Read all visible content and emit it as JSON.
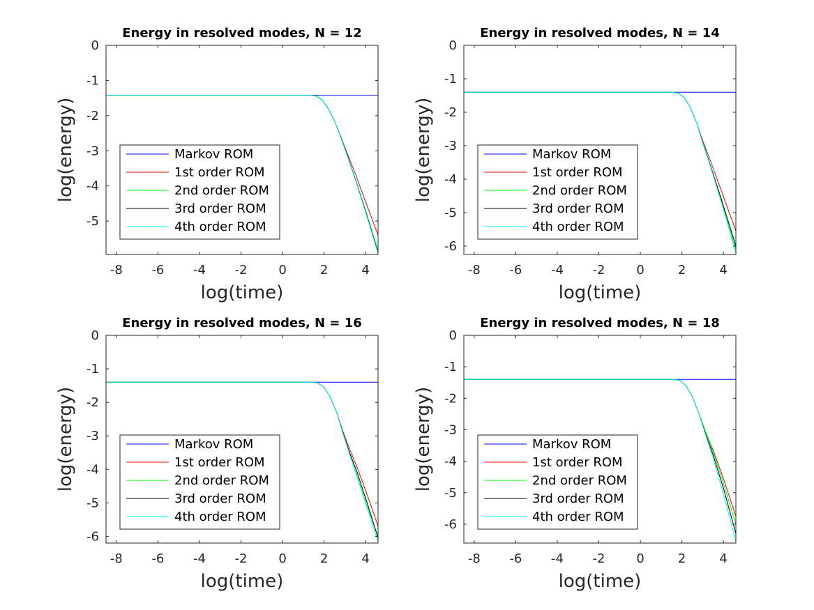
{
  "figure": {
    "colors": {
      "Markov ROM": "#0000ff",
      "1st order ROM": "#ff0000",
      "2nd order ROM": "#00ff00",
      "3rd order ROM": "#000000",
      "4th order ROM": "#00ffff"
    }
  },
  "chart_data": [
    {
      "type": "line",
      "title": "Energy in resolved modes, N = 12",
      "xlabel": "log(time)",
      "ylabel": "log(energy)",
      "xlim": [
        -8.5,
        4.6
      ],
      "ylim": [
        -5.95,
        0
      ],
      "xticks": [
        "-8",
        "-6",
        "-4",
        "-2",
        "0",
        "2",
        "4"
      ],
      "yticks": [
        "0",
        "-1",
        "-2",
        "-3",
        "-4",
        "-5"
      ],
      "legend_position": "lower-left",
      "series": [
        {
          "name": "Markov ROM",
          "x": [
            -8.5,
            1.5,
            4.6
          ],
          "y": [
            -1.42,
            -1.42,
            -1.42
          ]
        },
        {
          "name": "1st order ROM",
          "x": [
            -8.5,
            1.3,
            1.6,
            1.9,
            2.2,
            2.5,
            2.8,
            3.1,
            3.5,
            4.0,
            4.6
          ],
          "y": [
            -1.42,
            -1.42,
            -1.44,
            -1.55,
            -1.8,
            -2.15,
            -2.6,
            -3.05,
            -3.65,
            -4.45,
            -5.4
          ]
        },
        {
          "name": "2nd order ROM",
          "x": [
            -8.5,
            1.3,
            1.6,
            1.9,
            2.2,
            2.5,
            2.8,
            3.1,
            3.5,
            4.0,
            4.6
          ],
          "y": [
            -1.42,
            -1.42,
            -1.44,
            -1.55,
            -1.8,
            -2.15,
            -2.6,
            -3.1,
            -3.8,
            -4.7,
            -5.85
          ]
        },
        {
          "name": "3rd order ROM",
          "x": [
            -8.5,
            1.3,
            1.6,
            1.9,
            2.2,
            2.5,
            2.8,
            3.1,
            3.5,
            4.0,
            4.6
          ],
          "y": [
            -1.42,
            -1.42,
            -1.44,
            -1.55,
            -1.8,
            -2.15,
            -2.6,
            -3.1,
            -3.8,
            -4.72,
            -5.9
          ]
        },
        {
          "name": "4th order ROM",
          "x": [
            -8.5,
            1.3,
            1.6,
            1.9,
            2.2,
            2.5,
            2.8,
            3.1,
            3.5,
            4.0,
            4.6
          ],
          "y": [
            -1.42,
            -1.42,
            -1.44,
            -1.55,
            -1.8,
            -2.15,
            -2.62,
            -3.12,
            -3.82,
            -4.75,
            -5.93
          ]
        }
      ]
    },
    {
      "type": "line",
      "title": "Energy in resolved modes, N = 14",
      "xlabel": "log(time)",
      "ylabel": "log(energy)",
      "xlim": [
        -8.5,
        4.6
      ],
      "ylim": [
        -6.25,
        0
      ],
      "xticks": [
        "-8",
        "-6",
        "-4",
        "-2",
        "0",
        "2",
        "4"
      ],
      "yticks": [
        "0",
        "-1",
        "-2",
        "-3",
        "-4",
        "-5",
        "-6"
      ],
      "legend_position": "lower-left",
      "series": [
        {
          "name": "Markov ROM",
          "x": [
            -8.5,
            1.5,
            4.6
          ],
          "y": [
            -1.4,
            -1.4,
            -1.4
          ]
        },
        {
          "name": "1st order ROM",
          "x": [
            -8.5,
            1.5,
            1.8,
            2.1,
            2.4,
            2.7,
            3.0,
            3.4,
            3.9,
            4.6
          ],
          "y": [
            -1.4,
            -1.4,
            -1.42,
            -1.55,
            -1.85,
            -2.3,
            -2.85,
            -3.5,
            -4.35,
            -5.55
          ]
        },
        {
          "name": "2nd order ROM",
          "x": [
            -8.5,
            1.5,
            1.8,
            2.1,
            2.4,
            2.7,
            3.0,
            3.4,
            3.9,
            4.6
          ],
          "y": [
            -1.4,
            -1.4,
            -1.42,
            -1.55,
            -1.85,
            -2.3,
            -2.9,
            -3.65,
            -4.65,
            -6.1
          ]
        },
        {
          "name": "3rd order ROM",
          "x": [
            -8.5,
            1.5,
            1.8,
            2.1,
            2.4,
            2.7,
            3.0,
            3.4,
            3.9,
            4.6
          ],
          "y": [
            -1.4,
            -1.4,
            -1.42,
            -1.55,
            -1.85,
            -2.3,
            -2.9,
            -3.65,
            -4.6,
            -6.0
          ]
        },
        {
          "name": "4th order ROM",
          "x": [
            -8.5,
            1.5,
            1.8,
            2.1,
            2.4,
            2.7,
            3.0,
            3.4,
            3.9,
            4.6
          ],
          "y": [
            -1.4,
            -1.4,
            -1.42,
            -1.55,
            -1.85,
            -2.3,
            -2.92,
            -3.68,
            -4.7,
            -6.2
          ]
        }
      ]
    },
    {
      "type": "line",
      "title": "Energy in resolved modes, N = 16",
      "xlabel": "log(time)",
      "ylabel": "log(energy)",
      "xlim": [
        -8.5,
        4.6
      ],
      "ylim": [
        -6.2,
        0
      ],
      "xticks": [
        "-8",
        "-6",
        "-4",
        "-2",
        "0",
        "2",
        "4"
      ],
      "yticks": [
        "0",
        "-1",
        "-2",
        "-3",
        "-4",
        "-5",
        "-6"
      ],
      "legend_position": "lower-left",
      "series": [
        {
          "name": "Markov ROM",
          "x": [
            -8.5,
            1.5,
            4.6
          ],
          "y": [
            -1.4,
            -1.4,
            -1.4
          ]
        },
        {
          "name": "1st order ROM",
          "x": [
            -8.5,
            1.4,
            1.7,
            2.0,
            2.3,
            2.6,
            2.9,
            3.2,
            3.6,
            4.1,
            4.6
          ],
          "y": [
            -1.4,
            -1.4,
            -1.42,
            -1.55,
            -1.85,
            -2.3,
            -2.85,
            -3.35,
            -3.95,
            -4.8,
            -5.7
          ]
        },
        {
          "name": "2nd order ROM",
          "x": [
            -8.5,
            1.4,
            1.7,
            2.0,
            2.3,
            2.6,
            2.9,
            3.2,
            3.6,
            4.1,
            4.6
          ],
          "y": [
            -1.4,
            -1.4,
            -1.42,
            -1.55,
            -1.85,
            -2.3,
            -2.9,
            -3.5,
            -4.2,
            -5.15,
            -6.0
          ]
        },
        {
          "name": "3rd order ROM",
          "x": [
            -8.5,
            1.4,
            1.7,
            2.0,
            2.3,
            2.6,
            2.9,
            3.2,
            3.6,
            4.1,
            4.6
          ],
          "y": [
            -1.4,
            -1.4,
            -1.42,
            -1.55,
            -1.85,
            -2.3,
            -2.9,
            -3.45,
            -4.1,
            -5.05,
            -6.05
          ]
        },
        {
          "name": "4th order ROM",
          "x": [
            -8.5,
            1.4,
            1.7,
            2.0,
            2.3,
            2.6,
            2.9,
            3.2,
            3.6,
            4.1,
            4.6
          ],
          "y": [
            -1.4,
            -1.4,
            -1.42,
            -1.55,
            -1.85,
            -2.3,
            -2.92,
            -3.5,
            -4.25,
            -5.2,
            -6.15
          ]
        }
      ]
    },
    {
      "type": "line",
      "title": "Energy in resolved modes, N = 18",
      "xlabel": "log(time)",
      "ylabel": "log(energy)",
      "xlim": [
        -8.5,
        4.6
      ],
      "ylim": [
        -6.6,
        0
      ],
      "xticks": [
        "-8",
        "-6",
        "-4",
        "-2",
        "0",
        "2",
        "4"
      ],
      "yticks": [
        "0",
        "-1",
        "-2",
        "-3",
        "-4",
        "-5",
        "-6"
      ],
      "legend_position": "lower-left",
      "series": [
        {
          "name": "Markov ROM",
          "x": [
            -8.5,
            1.5,
            4.6
          ],
          "y": [
            -1.4,
            -1.4,
            -1.4
          ]
        },
        {
          "name": "1st order ROM",
          "x": [
            -8.5,
            1.6,
            1.9,
            2.2,
            2.5,
            2.8,
            3.1,
            3.5,
            4.0,
            4.6
          ],
          "y": [
            -1.4,
            -1.4,
            -1.43,
            -1.6,
            -1.95,
            -2.45,
            -3.0,
            -3.65,
            -4.55,
            -5.75
          ]
        },
        {
          "name": "2nd order ROM",
          "x": [
            -8.5,
            1.6,
            1.9,
            2.2,
            2.5,
            2.8,
            3.1,
            3.5,
            4.0,
            4.6
          ],
          "y": [
            -1.4,
            -1.4,
            -1.43,
            -1.6,
            -1.95,
            -2.45,
            -3.0,
            -3.7,
            -4.7,
            -6.0
          ]
        },
        {
          "name": "3rd order ROM",
          "x": [
            -8.5,
            1.6,
            1.9,
            2.2,
            2.5,
            2.8,
            3.1,
            3.5,
            4.0,
            4.6
          ],
          "y": [
            -1.4,
            -1.4,
            -1.43,
            -1.6,
            -1.95,
            -2.45,
            -3.05,
            -3.8,
            -4.85,
            -6.3
          ]
        },
        {
          "name": "4th order ROM",
          "x": [
            -8.5,
            1.6,
            1.9,
            2.2,
            2.5,
            2.8,
            3.1,
            3.5,
            4.0,
            4.6
          ],
          "y": [
            -1.4,
            -1.4,
            -1.43,
            -1.6,
            -1.95,
            -2.45,
            -3.08,
            -3.9,
            -5.05,
            -6.55
          ]
        }
      ]
    }
  ]
}
